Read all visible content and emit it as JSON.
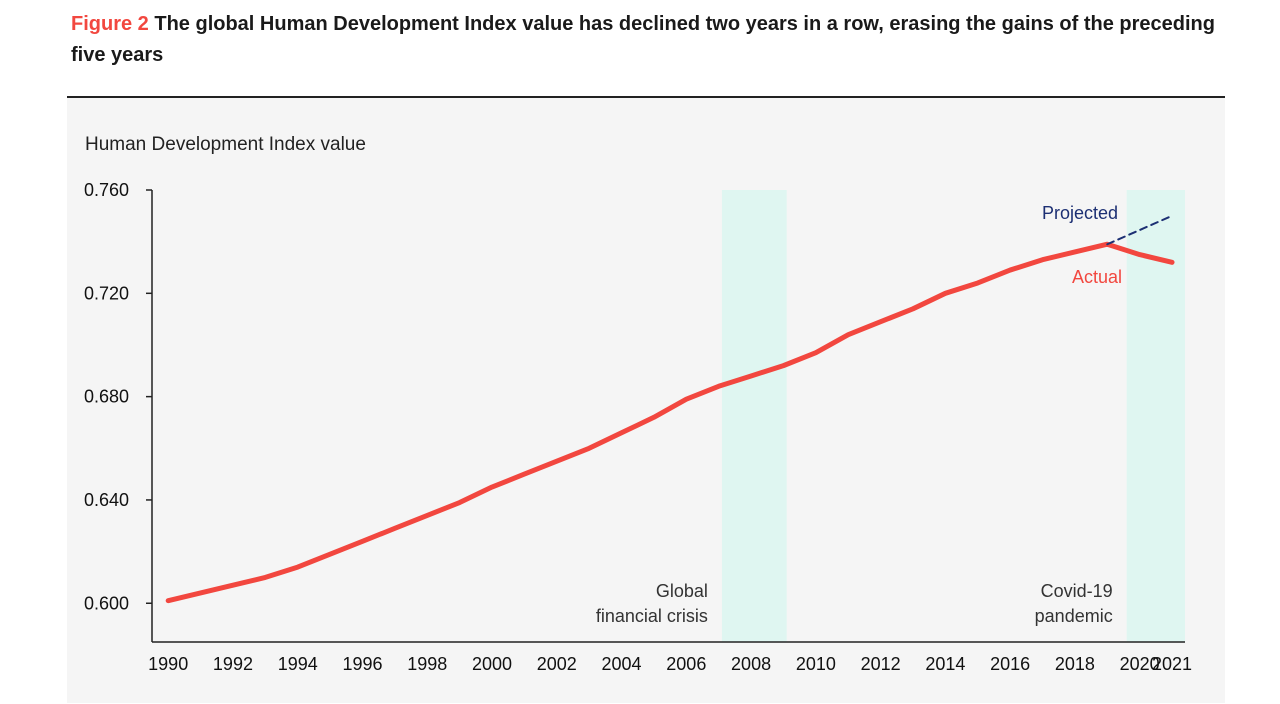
{
  "figure": {
    "label": "Figure 2",
    "title": "The global Human Development Index value has declined two years in a row, erasing the gains of the preceding five years"
  },
  "chart_data": {
    "type": "line",
    "ylabel": "Human Development Index value",
    "ylim": [
      0.585,
      0.76
    ],
    "yticks": [
      0.6,
      0.64,
      0.68,
      0.72,
      0.76
    ],
    "ytick_labels": [
      "0.600",
      "0.640",
      "0.680",
      "0.720",
      "0.760"
    ],
    "xticks": [
      1990,
      1992,
      1994,
      1996,
      1998,
      2000,
      2002,
      2004,
      2006,
      2008,
      2010,
      2012,
      2014,
      2016,
      2018,
      2020,
      2021
    ],
    "xtick_labels": [
      "1990",
      "1992",
      "1994",
      "1996",
      "1998",
      "2000",
      "2002",
      "2004",
      "2006",
      "2008",
      "2010",
      "2012",
      "2014",
      "2016",
      "2018",
      "2020",
      "2021"
    ],
    "xlim": [
      1989.5,
      2021.4
    ],
    "series": [
      {
        "name": "Actual",
        "color": "#f2473f",
        "x": [
          1990,
          1991,
          1992,
          1993,
          1994,
          1995,
          1996,
          1997,
          1998,
          1999,
          2000,
          2001,
          2002,
          2003,
          2004,
          2005,
          2006,
          2007,
          2008,
          2009,
          2010,
          2011,
          2012,
          2013,
          2014,
          2015,
          2016,
          2017,
          2018,
          2019,
          2020,
          2021
        ],
        "values": [
          0.601,
          0.604,
          0.607,
          0.61,
          0.614,
          0.619,
          0.624,
          0.629,
          0.634,
          0.639,
          0.645,
          0.65,
          0.655,
          0.66,
          0.666,
          0.672,
          0.679,
          0.684,
          0.688,
          0.692,
          0.697,
          0.704,
          0.709,
          0.714,
          0.72,
          0.724,
          0.729,
          0.733,
          0.736,
          0.739,
          0.735,
          0.732
        ]
      },
      {
        "name": "Projected",
        "color": "#1c2f73",
        "dashed": true,
        "x": [
          2019,
          2021
        ],
        "values": [
          0.739,
          0.75
        ]
      }
    ],
    "shaded_regions": [
      {
        "name": "Global financial crisis",
        "x0": 2007.1,
        "x1": 2009.1,
        "label_lines": [
          "Global",
          "financial crisis"
        ]
      },
      {
        "name": "Covid-19 pandemic",
        "x0": 2019.6,
        "x1": 2021.6,
        "label_lines": [
          "Covid-19",
          "pandemic"
        ]
      }
    ],
    "shade_color": "#dff6f1",
    "annotations": {
      "projected": "Projected",
      "actual": "Actual"
    }
  }
}
